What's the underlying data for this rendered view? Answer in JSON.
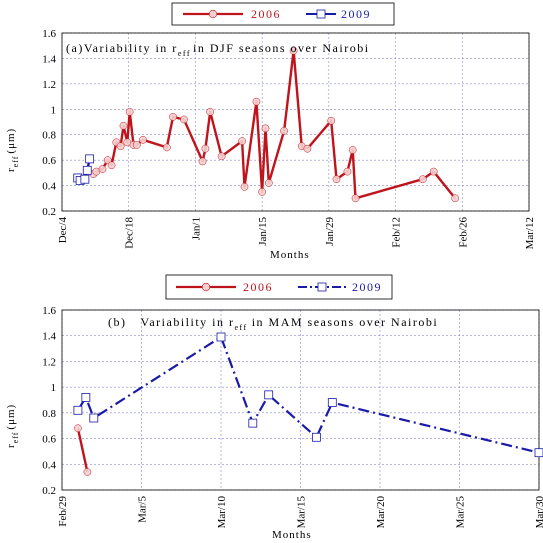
{
  "chart_data": [
    {
      "type": "line",
      "title_prefix": "(a)Variability in r",
      "title_sub": "eff",
      "title_suffix": "in DJF seasons over Nairobi",
      "xlabel": "Months",
      "ylabel_main": "r",
      "ylabel_sub": "eff",
      "ylabel_unit": "(μm)",
      "x_unit": "day",
      "xlim": [
        0,
        98
      ],
      "ylim": [
        0.2,
        1.6
      ],
      "yticks": [
        0.2,
        0.4,
        0.6,
        0.8,
        1,
        1.2,
        1.4,
        1.6
      ],
      "xticks": [
        {
          "value": 0,
          "label": "Dec/4"
        },
        {
          "value": 14,
          "label": "Dec/18"
        },
        {
          "value": 28,
          "label": "Jan/1"
        },
        {
          "value": 42,
          "label": "Jan/15"
        },
        {
          "value": 56,
          "label": "Jan/29"
        },
        {
          "value": 70,
          "label": "Feb/12"
        },
        {
          "value": 84,
          "label": "Feb/26"
        },
        {
          "value": 98,
          "label": "Mar/12"
        }
      ],
      "grid": true,
      "legend_position": "top",
      "series": [
        {
          "name": "2006",
          "color": "#c0141c",
          "marker": "circle",
          "dash": "solid",
          "x": [
            6.6,
            7.2,
            8.5,
            9.6,
            10.4,
            11.4,
            12.3,
            12.9,
            13.7,
            14.2,
            15.0,
            15.7,
            17.0,
            22.0,
            23.3,
            25.6,
            29.5,
            30.1,
            31.1,
            33.5,
            37.8,
            38.3,
            40.8,
            42.0,
            42.7,
            43.4,
            46.6,
            48.6,
            50.3,
            51.5,
            56.5,
            57.6,
            59.9,
            61.0,
            61.6,
            75.7,
            78.0,
            82.5
          ],
          "y": [
            0.49,
            0.51,
            0.53,
            0.6,
            0.56,
            0.74,
            0.71,
            0.87,
            0.74,
            0.98,
            0.72,
            0.72,
            0.76,
            0.7,
            0.94,
            0.92,
            0.59,
            0.69,
            0.98,
            0.63,
            0.75,
            0.39,
            1.06,
            0.35,
            0.85,
            0.42,
            0.83,
            1.46,
            0.71,
            0.69,
            0.91,
            0.45,
            0.51,
            0.68,
            0.3,
            0.45,
            0.51,
            0.3
          ]
        },
        {
          "name": "2009",
          "color": "#1a1aa8",
          "marker": "square",
          "dash": "solid",
          "x": [
            3.3,
            3.8,
            4.8,
            5.3,
            5.8
          ],
          "y": [
            0.46,
            0.44,
            0.45,
            0.52,
            0.61
          ]
        }
      ]
    },
    {
      "type": "line",
      "title_prefix": "(b)",
      "title_mid": "Variability in r",
      "title_sub": "eff",
      "title_suffix": "in MAM seasons over Nairobi",
      "xlabel": "Months",
      "ylabel_main": "r",
      "ylabel_sub": "eff",
      "ylabel_unit": "(μm)",
      "x_unit": "day",
      "xlim": [
        0,
        30
      ],
      "ylim": [
        0.2,
        1.6
      ],
      "yticks": [
        0.2,
        0.4,
        0.6,
        0.8,
        1,
        1.2,
        1.4,
        1.6
      ],
      "xticks": [
        {
          "value": 0,
          "label": "Feb/29"
        },
        {
          "value": 5,
          "label": "Mar/5"
        },
        {
          "value": 10,
          "label": "Mar/10"
        },
        {
          "value": 15,
          "label": "Mar/15"
        },
        {
          "value": 20,
          "label": "Mar/20"
        },
        {
          "value": 25,
          "label": "Mar/25"
        },
        {
          "value": 30,
          "label": "Mar/30"
        }
      ],
      "grid": true,
      "legend_position": "top",
      "series": [
        {
          "name": "2006",
          "color": "#c0141c",
          "marker": "circle",
          "dash": "solid",
          "x": [
            1.0,
            1.6
          ],
          "y": [
            0.68,
            0.34
          ]
        },
        {
          "name": "2009",
          "color": "#1a1aa8",
          "marker": "square",
          "dash": "dashdot",
          "x": [
            1.0,
            1.5,
            2.0,
            10.0,
            12.0,
            13.0,
            16.0,
            17.0,
            30.0
          ],
          "y": [
            0.82,
            0.92,
            0.76,
            1.39,
            0.72,
            0.94,
            0.61,
            0.88,
            0.49
          ]
        }
      ]
    }
  ]
}
